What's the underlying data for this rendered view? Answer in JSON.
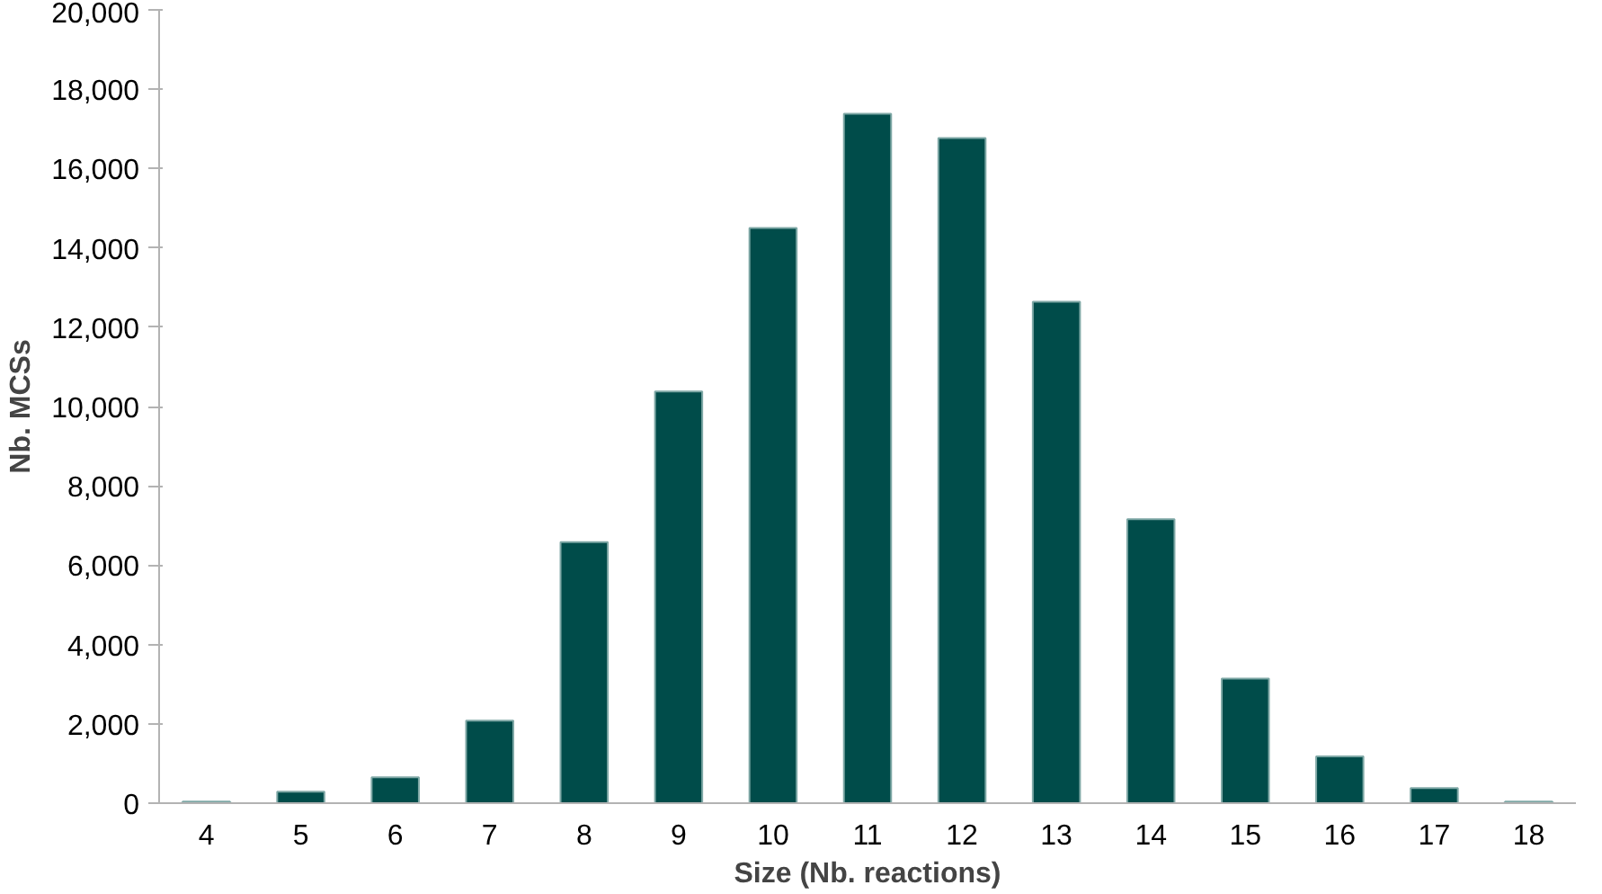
{
  "chart_data": {
    "type": "bar",
    "xlabel": "Size (Nb. reactions)",
    "ylabel": "Nb. MCSs",
    "categories": [
      "4",
      "5",
      "6",
      "7",
      "8",
      "9",
      "10",
      "11",
      "12",
      "13",
      "14",
      "15",
      "16",
      "17",
      "18"
    ],
    "values": [
      40,
      290,
      650,
      2080,
      6580,
      10380,
      14500,
      17380,
      16770,
      12640,
      7160,
      3140,
      1180,
      380,
      40
    ],
    "color": "#004c4a",
    "ylim": [
      0,
      20000
    ],
    "yticks": [
      {
        "value": 0,
        "label": "0"
      },
      {
        "value": 2000,
        "label": "2,000"
      },
      {
        "value": 4000,
        "label": "4,000"
      },
      {
        "value": 6000,
        "label": "6,000"
      },
      {
        "value": 8000,
        "label": "8,000"
      },
      {
        "value": 10000,
        "label": "10,000"
      },
      {
        "value": 12000,
        "label": "12,000"
      },
      {
        "value": 14000,
        "label": "14,000"
      },
      {
        "value": 16000,
        "label": "16,000"
      },
      {
        "value": 18000,
        "label": "18,000"
      },
      {
        "value": 20000,
        "label": "20,000"
      }
    ],
    "grid": false
  }
}
